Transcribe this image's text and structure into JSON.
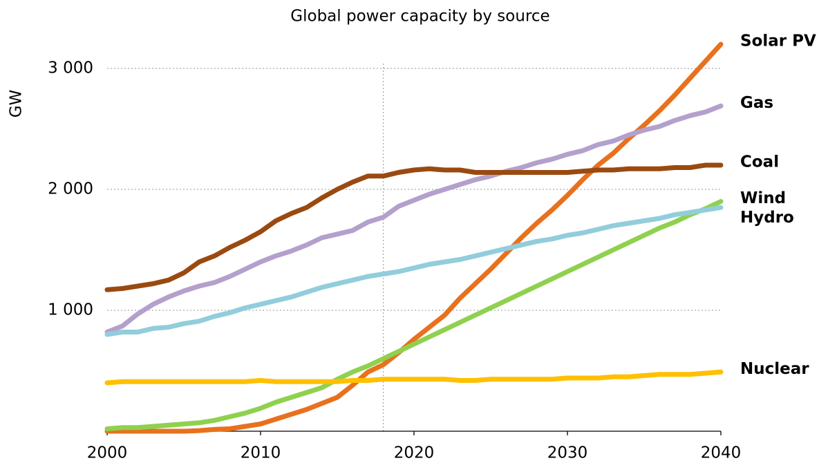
{
  "chart_data": {
    "type": "line",
    "title": "Global power capacity by source",
    "ylabel": "GW",
    "x": [
      2000,
      2001,
      2002,
      2003,
      2004,
      2005,
      2006,
      2007,
      2008,
      2009,
      2010,
      2011,
      2012,
      2013,
      2014,
      2015,
      2016,
      2017,
      2018,
      2019,
      2020,
      2021,
      2022,
      2023,
      2024,
      2025,
      2026,
      2027,
      2028,
      2029,
      2030,
      2031,
      2032,
      2033,
      2034,
      2035,
      2036,
      2037,
      2038,
      2039,
      2040
    ],
    "xlim": [
      2000,
      2040
    ],
    "xticks": [
      2000,
      2010,
      2020,
      2030,
      2040
    ],
    "ylim": [
      0,
      3300
    ],
    "yticks": [
      {
        "value": 1000,
        "label": "1 000"
      },
      {
        "value": 2000,
        "label": "2 000"
      },
      {
        "value": 3000,
        "label": "3 000"
      }
    ],
    "grid": true,
    "vline": 2018,
    "series": [
      {
        "name": "Solar PV",
        "color": "#e8711d",
        "values": [
          0,
          0,
          0,
          0,
          0,
          0,
          5,
          15,
          20,
          40,
          60,
          100,
          140,
          180,
          230,
          280,
          380,
          490,
          550,
          650,
          760,
          860,
          960,
          1100,
          1220,
          1340,
          1470,
          1600,
          1720,
          1830,
          1950,
          2080,
          2200,
          2300,
          2420,
          2530,
          2650,
          2780,
          2920,
          3060,
          3200
        ]
      },
      {
        "name": "Gas",
        "color": "#b4a0cc",
        "values": [
          820,
          870,
          970,
          1050,
          1110,
          1160,
          1200,
          1230,
          1280,
          1340,
          1400,
          1450,
          1490,
          1540,
          1600,
          1630,
          1660,
          1730,
          1770,
          1860,
          1910,
          1960,
          2000,
          2040,
          2080,
          2110,
          2150,
          2180,
          2220,
          2250,
          2290,
          2320,
          2370,
          2400,
          2450,
          2490,
          2520,
          2570,
          2610,
          2640,
          2690
        ]
      },
      {
        "name": "Coal",
        "color": "#9a4a10",
        "values": [
          1170,
          1180,
          1200,
          1220,
          1250,
          1310,
          1400,
          1450,
          1520,
          1580,
          1650,
          1740,
          1800,
          1850,
          1930,
          2000,
          2060,
          2110,
          2110,
          2140,
          2160,
          2170,
          2160,
          2160,
          2140,
          2140,
          2140,
          2140,
          2140,
          2140,
          2140,
          2150,
          2160,
          2160,
          2170,
          2170,
          2170,
          2180,
          2180,
          2200,
          2200
        ]
      },
      {
        "name": "Wind",
        "color": "#8fd14f",
        "values": [
          20,
          30,
          30,
          40,
          50,
          60,
          70,
          90,
          120,
          150,
          190,
          240,
          280,
          320,
          360,
          430,
          490,
          540,
          600,
          660,
          720,
          780,
          840,
          900,
          960,
          1020,
          1080,
          1140,
          1200,
          1260,
          1320,
          1380,
          1440,
          1500,
          1560,
          1620,
          1680,
          1730,
          1790,
          1840,
          1900
        ]
      },
      {
        "name": "Hydro",
        "color": "#92cddc",
        "values": [
          800,
          820,
          820,
          850,
          860,
          890,
          910,
          950,
          980,
          1020,
          1050,
          1080,
          1110,
          1150,
          1190,
          1220,
          1250,
          1280,
          1300,
          1320,
          1350,
          1380,
          1400,
          1420,
          1450,
          1480,
          1510,
          1540,
          1570,
          1590,
          1620,
          1640,
          1670,
          1700,
          1720,
          1740,
          1760,
          1790,
          1810,
          1830,
          1850
        ]
      },
      {
        "name": "Nuclear",
        "color": "#ffc000",
        "values": [
          400,
          410,
          410,
          410,
          410,
          410,
          410,
          410,
          410,
          410,
          420,
          410,
          410,
          410,
          410,
          410,
          420,
          420,
          430,
          430,
          430,
          430,
          430,
          420,
          420,
          430,
          430,
          430,
          430,
          430,
          440,
          440,
          440,
          450,
          450,
          460,
          470,
          470,
          470,
          480,
          490
        ]
      }
    ]
  }
}
